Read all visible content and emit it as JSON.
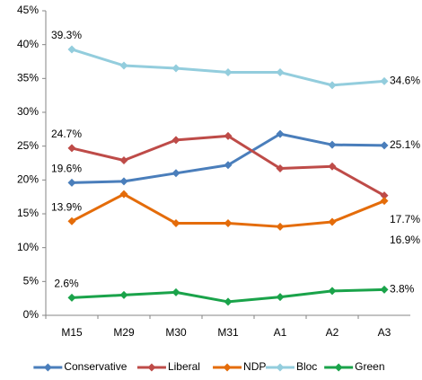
{
  "chart_data": {
    "type": "line",
    "categories": [
      "M15",
      "M29",
      "M30",
      "M31",
      "A1",
      "A2",
      "A3"
    ],
    "ylim": [
      0,
      45
    ],
    "yticks": [
      {
        "value": 0,
        "label": "0%"
      },
      {
        "value": 5,
        "label": "5%"
      },
      {
        "value": 10,
        "label": "10%"
      },
      {
        "value": 15,
        "label": "15%"
      },
      {
        "value": 20,
        "label": "20%"
      },
      {
        "value": 25,
        "label": "25%"
      },
      {
        "value": 30,
        "label": "30%"
      },
      {
        "value": 35,
        "label": "35%"
      },
      {
        "value": 40,
        "label": "40%"
      },
      {
        "value": 45,
        "label": "45%"
      }
    ],
    "grid": false,
    "legend": "bottom",
    "series": [
      {
        "name": "Conservative",
        "color": "#4a7ebb",
        "values": [
          19.6,
          19.8,
          21.0,
          22.2,
          26.8,
          25.2,
          25.1
        ],
        "value_labels": [
          "19.6%",
          null,
          null,
          null,
          null,
          null,
          "25.1%"
        ]
      },
      {
        "name": "Liberal",
        "color": "#be4b48",
        "values": [
          24.7,
          22.9,
          25.9,
          26.5,
          21.7,
          22.0,
          17.7
        ],
        "value_labels": [
          "24.7%",
          null,
          null,
          null,
          null,
          null,
          "17.7%"
        ]
      },
      {
        "name": "NDP",
        "color": "#e46c0a",
        "values": [
          13.9,
          17.9,
          13.6,
          13.6,
          13.1,
          13.8,
          16.9
        ],
        "value_labels": [
          "13.9%",
          null,
          null,
          null,
          null,
          null,
          "16.9%"
        ]
      },
      {
        "name": "Bloc",
        "color": "#93cddd",
        "values": [
          39.3,
          36.9,
          36.5,
          35.9,
          35.9,
          34.0,
          34.6
        ],
        "value_labels": [
          "39.3%",
          null,
          null,
          null,
          null,
          null,
          "34.6%"
        ]
      },
      {
        "name": "Green",
        "color": "#1aa34a",
        "values": [
          2.6,
          3.0,
          3.4,
          2.0,
          2.7,
          3.6,
          3.8
        ],
        "value_labels": [
          "2.6%",
          null,
          null,
          null,
          null,
          null,
          "3.8%"
        ]
      }
    ]
  }
}
